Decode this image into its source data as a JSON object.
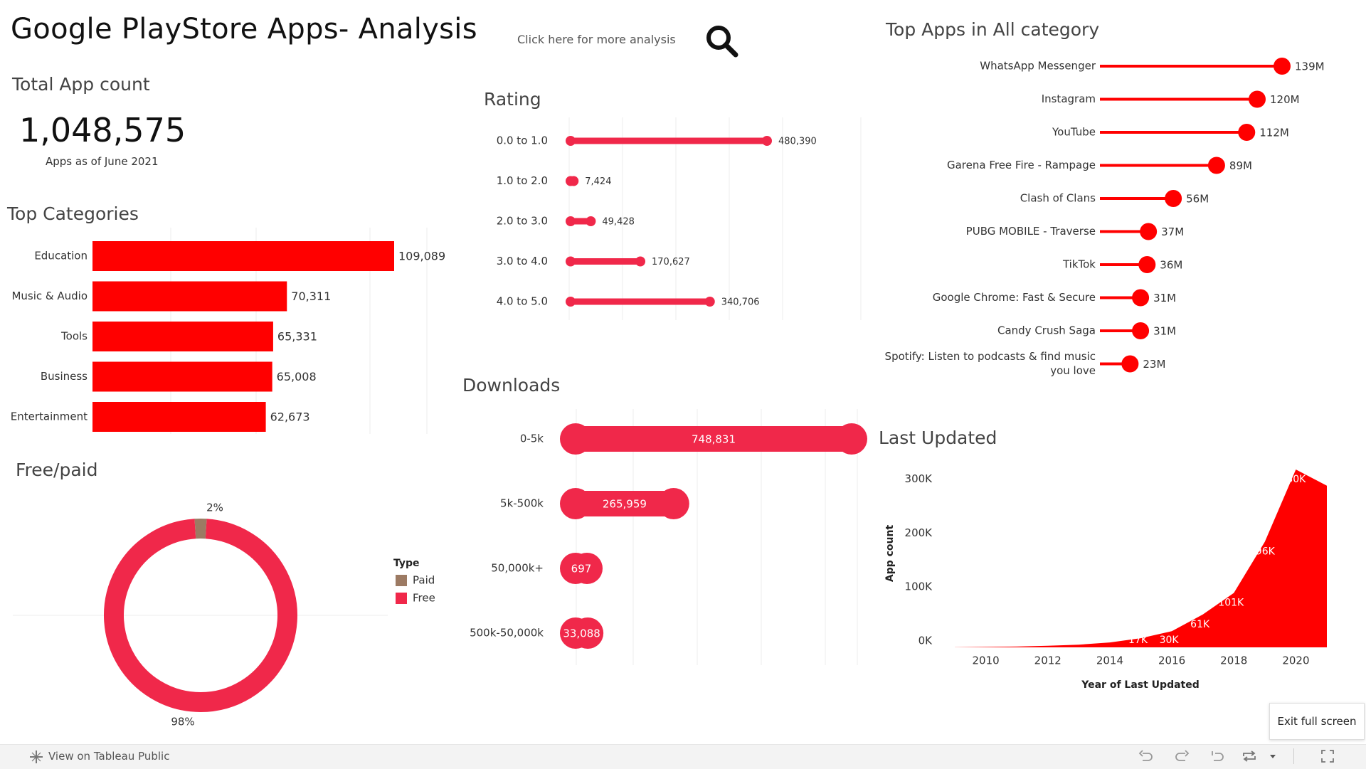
{
  "header": {
    "title": "Google PlayStore Apps- Analysis",
    "link_text": "Click here for more analysis",
    "search_icon": "search-icon"
  },
  "total": {
    "title": "Total App count",
    "value": "1,048,575",
    "subtitle": "Apps as of June 2021"
  },
  "colors": {
    "bright_red": "#ff0000",
    "crimson": "#f0284a",
    "paid_brown": "#9c7a63"
  },
  "footer": {
    "tableau_link": "View on Tableau Public",
    "exit_label": "Exit full screen",
    "icons": [
      "undo-icon",
      "redo-icon",
      "revert-icon",
      "share-icon",
      "dropdown-icon",
      "fullscreen-icon"
    ]
  },
  "chart_data": [
    {
      "id": "top_categories",
      "type": "bar",
      "title": "Top Categories",
      "categories": [
        "Education",
        "Music & Audio",
        "Tools",
        "Business",
        "Entertainment"
      ],
      "values": [
        109089,
        70311,
        65331,
        65008,
        62673
      ],
      "value_labels": [
        "109,089",
        "70,311",
        "65,331",
        "65,008",
        "62,673"
      ]
    },
    {
      "id": "free_paid",
      "type": "pie",
      "title": "Free/paid",
      "legend_title": "Type",
      "labels": [
        "Paid",
        "Free"
      ],
      "values": [
        2,
        98
      ],
      "value_labels": [
        "2%",
        "98%"
      ],
      "legend_placement": "right"
    },
    {
      "id": "rating",
      "type": "bar",
      "title": "Rating",
      "categories": [
        "0.0 to 1.0",
        "1.0 to 2.0",
        "2.0 to 3.0",
        "3.0 to 4.0",
        "4.0 to 5.0"
      ],
      "values": [
        480390,
        7424,
        49428,
        170627,
        340706
      ],
      "value_labels": [
        "480,390",
        "7,424",
        "49,428",
        "170,627",
        "340,706"
      ]
    },
    {
      "id": "downloads",
      "type": "bar",
      "title": "Downloads",
      "categories": [
        "0-5k",
        "5k-500k",
        "50,000k+",
        "500k-50,000k"
      ],
      "values": [
        748831,
        265959,
        697,
        33088
      ],
      "value_labels": [
        "748,831",
        "265,959",
        "697",
        "33,088"
      ]
    },
    {
      "id": "top_apps",
      "type": "bar",
      "title": "Top Apps in All category",
      "categories": [
        "WhatsApp Messenger",
        "Instagram",
        "YouTube",
        "Garena Free Fire - Rampage",
        "Clash of Clans",
        "PUBG MOBILE - Traverse",
        "TikTok",
        "Google Chrome: Fast & Secure",
        "Candy Crush Saga",
        "Spotify: Listen to podcasts & find music you love"
      ],
      "category_lines": [
        [
          "WhatsApp Messenger"
        ],
        [
          "Instagram"
        ],
        [
          "YouTube"
        ],
        [
          "Garena Free Fire - Rampage"
        ],
        [
          "Clash of Clans"
        ],
        [
          "PUBG MOBILE - Traverse"
        ],
        [
          "TikTok"
        ],
        [
          "Google Chrome: Fast & Secure"
        ],
        [
          "Candy Crush Saga"
        ],
        [
          "Spotify: Listen to podcasts & find music",
          "you love"
        ]
      ],
      "values": [
        139,
        120,
        112,
        89,
        56,
        37,
        36,
        31,
        31,
        23
      ],
      "value_labels": [
        "139M",
        "120M",
        "112M",
        "89M",
        "56M",
        "37M",
        "36M",
        "31M",
        "31M",
        "23M"
      ]
    },
    {
      "id": "last_updated",
      "type": "area",
      "title": "Last Updated",
      "xlabel": "Year of Last Updated",
      "ylabel": "App count",
      "x": [
        2009,
        2010,
        2011,
        2012,
        2013,
        2014,
        2015,
        2016,
        2017,
        2018,
        2019,
        2020,
        2021
      ],
      "values": [
        200,
        800,
        1500,
        3000,
        5000,
        9000,
        17000,
        30000,
        61000,
        101000,
        196000,
        330000,
        300000
      ],
      "point_labels": [
        "",
        "",
        "",
        "",
        "",
        "",
        "17K",
        "30K",
        "61K",
        "101K",
        "196K",
        "330K",
        ""
      ],
      "xticks": [
        2010,
        2012,
        2014,
        2016,
        2018,
        2020
      ],
      "yticks": [
        0,
        100000,
        200000,
        300000
      ],
      "ytick_labels": [
        "0K",
        "100K",
        "200K",
        "300K"
      ],
      "xlim": [
        2009,
        2021
      ],
      "ylim": [
        0,
        330000
      ]
    }
  ]
}
